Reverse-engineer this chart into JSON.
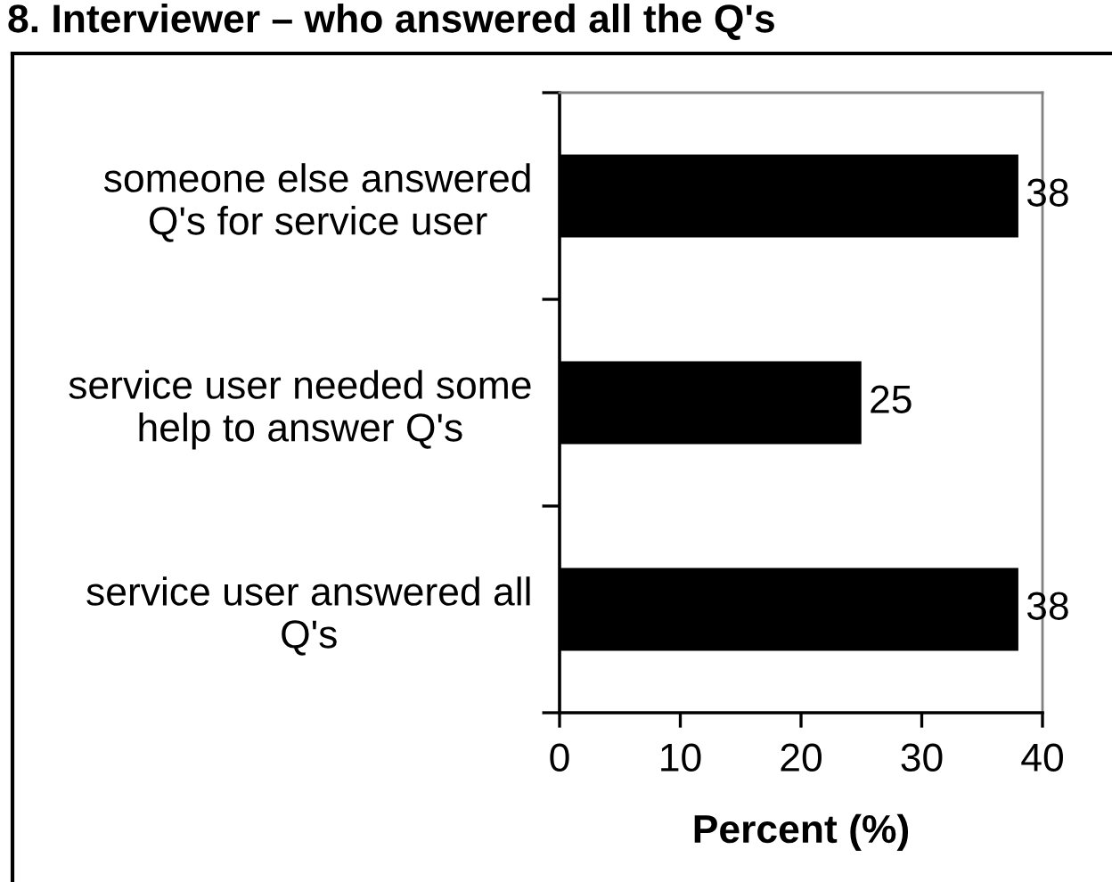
{
  "chart_data": {
    "type": "bar",
    "orientation": "horizontal",
    "title": "8. Interviewer – who answered all the Q's",
    "xlabel": "Percent (%)",
    "categories": [
      "someone else answered\nQ's for service user",
      "service user needed some\nhelp to answer Q's",
      "service user answered all\nQ's"
    ],
    "values": [
      38,
      25,
      38
    ],
    "color": "#000000",
    "xlim": [
      0,
      40
    ],
    "xticks": [
      0,
      10,
      20,
      30,
      40
    ],
    "data_labels": true
  }
}
